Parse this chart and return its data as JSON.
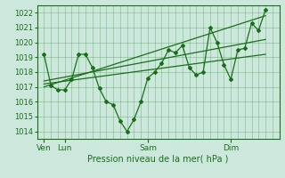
{
  "background_color": "#cce8dc",
  "grid_color": "#4a9a4a",
  "line_color": "#1a6e1a",
  "marker_color": "#1a6e1a",
  "xlabel": "Pression niveau de la mer( hPa )",
  "ylim": [
    1013.5,
    1022.5
  ],
  "yticks": [
    1014,
    1015,
    1016,
    1017,
    1018,
    1019,
    1020,
    1021,
    1022
  ],
  "day_labels": [
    "Ven",
    "Lun",
    "Sam",
    "Dim"
  ],
  "day_positions": [
    6,
    24,
    96,
    168
  ],
  "xlim": [
    0,
    210
  ],
  "total_hours": 210,
  "main_series_x": [
    6,
    12,
    18,
    24,
    30,
    36,
    42,
    48,
    54,
    60,
    66,
    72,
    78,
    84,
    90,
    96,
    102,
    108,
    114,
    120,
    126,
    132,
    138,
    144,
    150,
    156,
    162,
    168,
    174,
    180,
    186,
    192,
    198
  ],
  "main_series_y": [
    1019.2,
    1017.1,
    1016.8,
    1016.8,
    1017.5,
    1019.2,
    1019.2,
    1018.3,
    1016.9,
    1016.0,
    1015.8,
    1014.7,
    1014.0,
    1014.8,
    1016.0,
    1017.6,
    1018.0,
    1018.6,
    1019.5,
    1019.3,
    1019.8,
    1018.3,
    1017.8,
    1018.0,
    1021.0,
    1020.0,
    1018.5,
    1017.5,
    1019.5,
    1019.6,
    1021.3,
    1020.8,
    1022.2
  ],
  "trend1_x": [
    6,
    198
  ],
  "trend1_y": [
    1017.0,
    1021.8
  ],
  "trend2_x": [
    6,
    198
  ],
  "trend2_y": [
    1017.2,
    1019.2
  ],
  "trend3_x": [
    6,
    198
  ],
  "trend3_y": [
    1017.4,
    1020.2
  ]
}
